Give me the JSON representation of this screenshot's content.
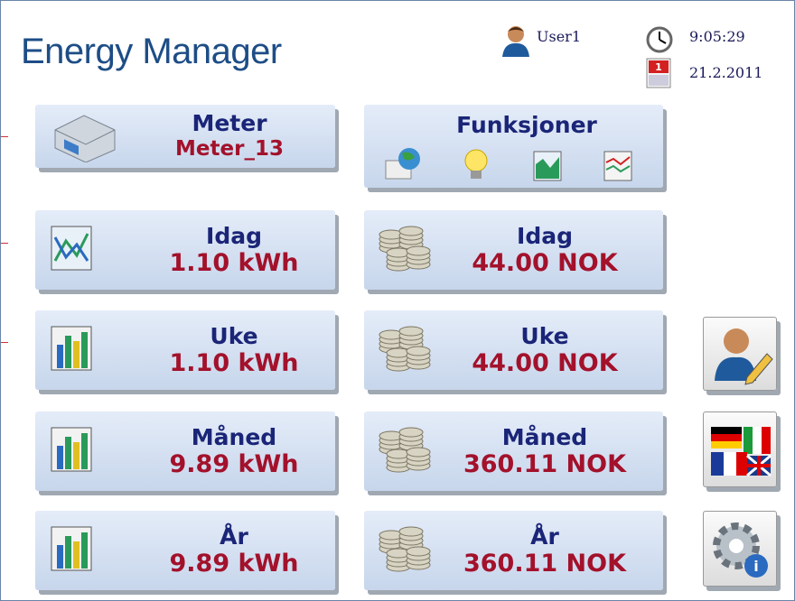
{
  "header": {
    "title": "Energy Manager",
    "user": "User1",
    "time": "9:05:29",
    "date": "21.2.2011"
  },
  "meter_button": {
    "label": "Meter",
    "value": "Meter_13"
  },
  "functions_button": {
    "label": "Funksjoner"
  },
  "energy": [
    {
      "label": "Idag",
      "value": "1.10 kWh"
    },
    {
      "label": "Uke",
      "value": "1.10 kWh"
    },
    {
      "label": "Måned",
      "value": "9.89 kWh"
    },
    {
      "label": "År",
      "value": "9.89 kWh"
    }
  ],
  "cost": [
    {
      "label": "Idag",
      "value": "44.00 NOK"
    },
    {
      "label": "Uke",
      "value": "44.00 NOK"
    },
    {
      "label": "Måned",
      "value": "360.11 NOK"
    },
    {
      "label": "År",
      "value": "360.11 NOK"
    }
  ]
}
